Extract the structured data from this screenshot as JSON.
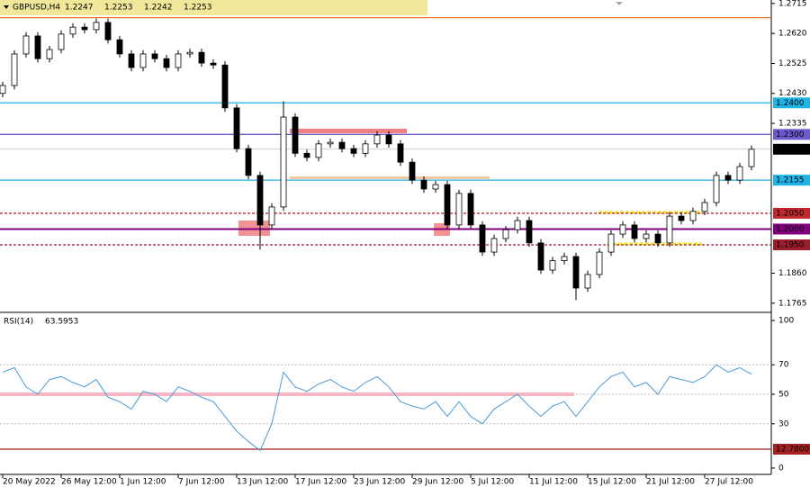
{
  "chart_data": [
    {
      "type": "candlestick",
      "symbol": "GBPUSD,H4",
      "header_values": [
        1.2247,
        1.2253,
        1.2242,
        1.2253
      ],
      "color": "#000000",
      "categories": [
        "20 May 2022",
        null,
        null,
        null,
        null,
        "26 May 12:00",
        null,
        null,
        null,
        null,
        "1 Jun 12:00",
        null,
        null,
        null,
        null,
        "7 Jun 12:00",
        null,
        null,
        null,
        null,
        "13 Jun 12:00",
        null,
        null,
        null,
        null,
        "17 Jun 12:00",
        null,
        null,
        null,
        null,
        "23 Jun 12:00",
        null,
        null,
        null,
        null,
        "29 Jun 12:00",
        null,
        null,
        null,
        null,
        "5 Jul 12:00",
        null,
        null,
        null,
        null,
        "11 Jul 12:00",
        null,
        null,
        null,
        null,
        "15 Jul 12:00",
        null,
        null,
        null,
        null,
        "21 Jul 12:00",
        null,
        null,
        null,
        null,
        "27 Jul 12:00",
        null,
        null,
        null,
        null
      ],
      "open": [
        1.243,
        1.2455,
        1.2555,
        1.2612,
        1.254,
        1.2569,
        1.2618,
        1.264,
        1.2632,
        1.2655,
        1.26,
        1.2555,
        1.2512,
        1.2555,
        1.254,
        1.2512,
        1.2555,
        1.256,
        1.2526,
        1.252,
        1.2384,
        1.2255,
        1.217,
        1.2013,
        1.207,
        1.2355,
        1.224,
        1.2227,
        1.227,
        1.2275,
        1.2255,
        1.224,
        1.227,
        1.2298,
        1.227,
        1.2212,
        1.2155,
        1.2127,
        1.2141,
        1.2013,
        1.2113,
        1.2013,
        1.1927,
        1.197,
        1.1998,
        1.2027,
        1.1956,
        1.187,
        1.19,
        1.1913,
        1.1813,
        1.1856,
        1.1927,
        1.1984,
        1.2013,
        1.197,
        1.1984,
        1.1956,
        1.2041,
        1.2027,
        1.2056,
        1.2084,
        1.217,
        1.2155,
        1.2198
      ],
      "high": [
        1.2467,
        1.2567,
        1.2624,
        1.2624,
        1.2581,
        1.263,
        1.2652,
        1.2652,
        1.2667,
        1.2667,
        1.2612,
        1.2567,
        1.2567,
        1.2567,
        1.2552,
        1.2567,
        1.2572,
        1.2572,
        1.2538,
        1.2532,
        1.2396,
        1.2267,
        1.2182,
        1.2082,
        1.2405,
        1.2367,
        1.2252,
        1.2282,
        1.2287,
        1.2287,
        1.2267,
        1.2282,
        1.231,
        1.231,
        1.2282,
        1.2224,
        1.2167,
        1.2153,
        1.2153,
        1.2125,
        1.2125,
        1.2025,
        1.1982,
        1.201,
        1.2039,
        1.2039,
        1.1968,
        1.1912,
        1.1925,
        1.1925,
        1.1868,
        1.1939,
        1.1996,
        1.2025,
        1.2025,
        1.1996,
        1.1996,
        1.2053,
        1.2053,
        1.2068,
        1.2096,
        1.2182,
        1.2182,
        1.221,
        1.2265
      ],
      "low": [
        1.2418,
        1.2443,
        1.2543,
        1.2528,
        1.2528,
        1.2557,
        1.2606,
        1.262,
        1.262,
        1.2588,
        1.2543,
        1.25,
        1.25,
        1.2528,
        1.25,
        1.25,
        1.2543,
        1.2514,
        1.2508,
        1.2372,
        1.2243,
        1.2158,
        1.1935,
        1.2001,
        1.2058,
        1.2228,
        1.2215,
        1.2215,
        1.2258,
        1.2243,
        1.2228,
        1.2228,
        1.2258,
        1.2258,
        1.22,
        1.2143,
        1.2115,
        1.2115,
        1.2001,
        1.2001,
        1.2001,
        1.1915,
        1.1915,
        1.1958,
        1.1986,
        1.1944,
        1.1858,
        1.1858,
        1.1888,
        1.1775,
        1.1801,
        1.1844,
        1.1915,
        1.1972,
        1.1958,
        1.1958,
        1.1944,
        1.1944,
        1.2015,
        1.2015,
        1.2044,
        1.2072,
        1.2143,
        1.2143,
        1.2186
      ],
      "close": [
        1.2455,
        1.2555,
        1.2612,
        1.254,
        1.2569,
        1.2618,
        1.264,
        1.2632,
        1.2655,
        1.26,
        1.2555,
        1.2512,
        1.2555,
        1.254,
        1.2512,
        1.2555,
        1.256,
        1.2526,
        1.252,
        1.2384,
        1.2255,
        1.217,
        1.2013,
        1.207,
        1.2355,
        1.224,
        1.2227,
        1.227,
        1.2275,
        1.2255,
        1.224,
        1.227,
        1.2298,
        1.227,
        1.2212,
        1.2155,
        1.2127,
        1.2141,
        1.2013,
        1.2113,
        1.2013,
        1.1927,
        1.197,
        1.1998,
        1.2027,
        1.1956,
        1.187,
        1.19,
        1.1913,
        1.1813,
        1.1856,
        1.1927,
        1.1984,
        1.2013,
        1.197,
        1.1984,
        1.1956,
        1.2041,
        1.2027,
        1.2056,
        1.2084,
        1.217,
        1.2155,
        1.2198,
        1.2253
      ],
      "ylim": [
        1.1736,
        1.2726
      ],
      "yticks": [
        1.2715,
        {
          "value": 1.262,
          "label": "1.2620"
        },
        1.2525,
        {
          "value": 1.243,
          "label": "1.2430"
        },
        1.2335,
        {
          "value": 1.186,
          "label": "1.1860"
        },
        1.1765
      ],
      "levels": [
        {
          "value": 1.267,
          "color": "#e8742c",
          "style": "solid"
        },
        {
          "value": 1.24,
          "label": "1.2400",
          "color": "#1fb4e6",
          "style": "solid"
        },
        {
          "value": 1.23,
          "label": "1.2300",
          "color": "#6a5acd",
          "style": "solid"
        },
        {
          "value": 1.2253,
          "label": "1.2253",
          "color": "#000000",
          "style": "current"
        },
        {
          "value": 1.2155,
          "label": "1.2155",
          "color": "#1fb4e6",
          "style": "solid"
        },
        {
          "value": 1.205,
          "label": "1.2050",
          "color": "#c0282d",
          "style": "dashed"
        },
        {
          "value": 1.2,
          "label": "1.2000",
          "color": "#800080",
          "style": "thick"
        },
        {
          "value": 1.195,
          "label": "1.1950",
          "color": "#9b1c2a",
          "style": "dashed"
        }
      ]
    },
    {
      "type": "line",
      "name": "RSI(14)",
      "last": 63.5953,
      "color": "#4a9bd8",
      "values": [
        65,
        68,
        55,
        50,
        60,
        62,
        58,
        55,
        60,
        48,
        45,
        40,
        52,
        50,
        45,
        55,
        52,
        48,
        45,
        35,
        25,
        18,
        12,
        30,
        65,
        55,
        52,
        57,
        60,
        55,
        52,
        58,
        62,
        55,
        45,
        42,
        40,
        45,
        35,
        45,
        35,
        30,
        40,
        45,
        50,
        42,
        35,
        42,
        45,
        35,
        45,
        55,
        62,
        65,
        55,
        58,
        50,
        62,
        60,
        58,
        62,
        70,
        65,
        68,
        63.6
      ],
      "ylim": [
        -4.3,
        104.3
      ],
      "yticks": [
        100,
        70,
        50,
        30,
        0
      ],
      "levels": [
        {
          "value": 50,
          "color": "#f7b6c4",
          "style": "band"
        },
        {
          "value": 12.78,
          "label": "12.7800",
          "color": "#a52020",
          "style": "solid"
        }
      ]
    }
  ]
}
